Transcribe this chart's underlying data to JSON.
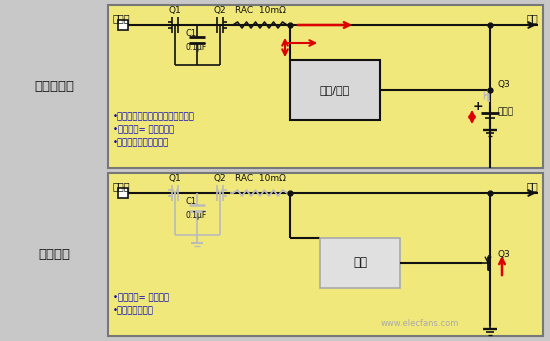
{
  "bg_color": "#f0e87a",
  "outer_bg": "#c8c8c8",
  "panel_border": "#666666",
  "red": "#dd0000",
  "blue": "#0000bb",
  "black": "#111111",
  "gray": "#999999",
  "lgray": "#bbbbbb",
  "white": "#ffffff",
  "box_bg": "#d8d8d8",
  "panel1": {
    "label_left": "适配器模式",
    "label_adapter": "适配器",
    "label_system": "系统",
    "label_Q1": "Q1",
    "label_Q2": "Q2",
    "label_RAC": "RAC  10mΩ",
    "label_C1": "C1",
    "label_C1val": "0.1μF",
    "label_converter": "降压/升压",
    "label_battery": "电池组",
    "label_Q3": "Q3",
    "bullets": [
      "•系统负载直接电源路径",
      "•系统电压= 适配器电压",
      "•适配器和电池可以同时为系统供电"
    ]
  },
  "panel2": {
    "label_left": "电池模式",
    "label_adapter": "适配器",
    "label_system": "系统",
    "label_Q1": "Q1",
    "label_Q2": "Q2",
    "label_RAC": "RAC  10mΩ",
    "label_C1": "C1",
    "label_C1val": "0.1μF",
    "label_converter": "降压",
    "label_Q3": "Q3",
    "bullets": [
      "•电池为系统供电",
      "•系统电压= 电池电压"
    ]
  },
  "watermark": "www.elecfans.com"
}
